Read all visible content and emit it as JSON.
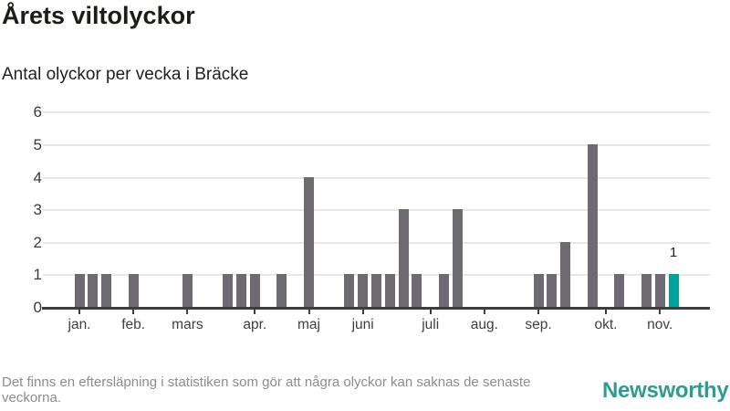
{
  "header": {
    "title": "Årets viltolyckor",
    "subtitle": "Antal olyckor per vecka i Bräcke"
  },
  "chart_data": {
    "type": "bar",
    "title": "Årets viltolyckor",
    "subtitle": "Antal olyckor per vecka i Bräcke",
    "x_unit": "week-of-year",
    "weeks_start": 1,
    "values": [
      1,
      1,
      1,
      0,
      1,
      0,
      0,
      0,
      1,
      0,
      0,
      1,
      1,
      1,
      0,
      1,
      0,
      4,
      0,
      0,
      1,
      1,
      1,
      1,
      3,
      1,
      0,
      1,
      3,
      0,
      0,
      0,
      0,
      0,
      1,
      1,
      2,
      0,
      5,
      0,
      1,
      0,
      1,
      1,
      1
    ],
    "ylim": [
      0,
      6
    ],
    "yticks": [
      0,
      1,
      2,
      3,
      4,
      5,
      6
    ],
    "grid": "horizontal",
    "bar_color": "#6d6a71",
    "highlight_color": "#00a39b",
    "highlight_index": 44,
    "annotation": {
      "index": 44,
      "text": "1"
    },
    "month_ticks": [
      {
        "week": 1,
        "label": "jan."
      },
      {
        "week": 5,
        "label": "feb."
      },
      {
        "week": 9,
        "label": "mars"
      },
      {
        "week": 14,
        "label": "apr."
      },
      {
        "week": 18,
        "label": "maj"
      },
      {
        "week": 22,
        "label": "juni"
      },
      {
        "week": 27,
        "label": "juli"
      },
      {
        "week": 31,
        "label": "aug."
      },
      {
        "week": 35,
        "label": "sep."
      },
      {
        "week": 40,
        "label": "okt."
      },
      {
        "week": 44,
        "label": "nov."
      }
    ]
  },
  "footer": {
    "disclaimer": "Det finns en eftersläpning i statistiken som gör att några olyckor kan saknas de senaste veckorna.",
    "brand_name": "Newsworthy",
    "brand_color": "#2e9c94"
  }
}
